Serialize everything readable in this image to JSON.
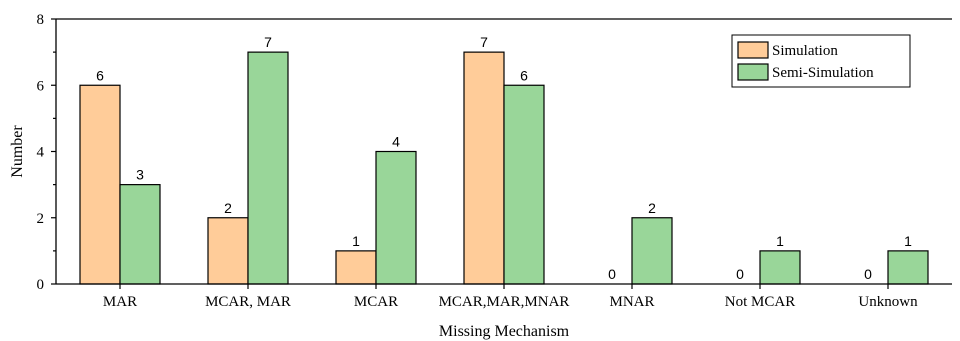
{
  "chart_data": {
    "type": "bar",
    "title": "",
    "xlabel": "Missing Mechanism",
    "ylabel": "Number",
    "ylim": [
      0,
      8
    ],
    "yticks": [
      0,
      2,
      4,
      6,
      8
    ],
    "grid": false,
    "legend_position": "top-right",
    "categories": [
      "MAR",
      "MCAR, MAR",
      "MCAR",
      "MCAR,MAR,MNAR",
      "MNAR",
      "Not MCAR",
      "Unknown"
    ],
    "series": [
      {
        "name": "Simulation",
        "values": [
          6,
          2,
          1,
          7,
          0,
          0,
          0
        ],
        "color": "#FFCC99"
      },
      {
        "name": "Semi-Simulation",
        "values": [
          3,
          7,
          4,
          6,
          2,
          1,
          1
        ],
        "color": "#99D699"
      }
    ]
  }
}
